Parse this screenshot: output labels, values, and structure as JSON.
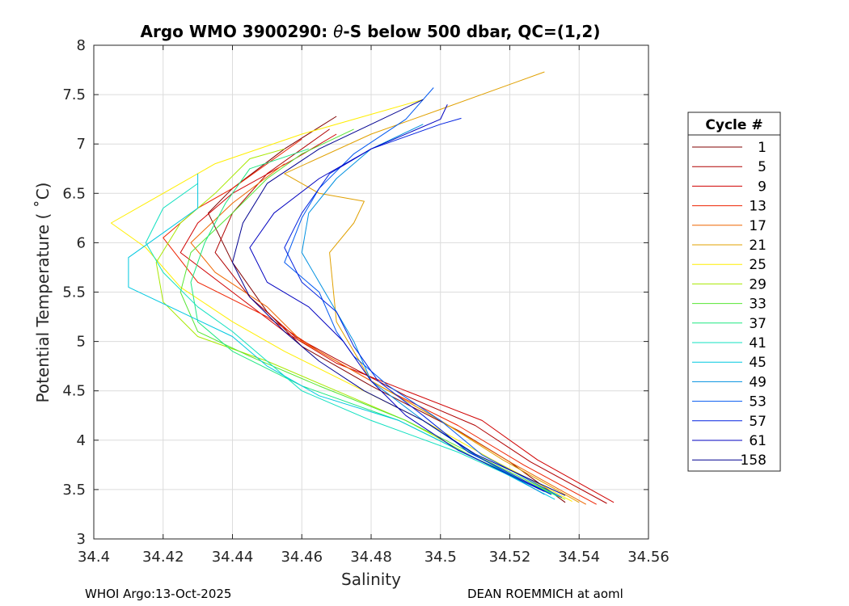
{
  "chart_data": {
    "type": "line",
    "title_prefix": "Argo WMO 3900290: ",
    "title_theta": "θ",
    "title_suffix": "-S below 500 dbar,  QC=(1,2)",
    "xlabel": "Salinity",
    "ylabel": "Potential Temperature ( ˚C)",
    "xlim": [
      34.4,
      34.56
    ],
    "ylim": [
      3,
      8
    ],
    "xticks": [
      34.4,
      34.42,
      34.44,
      34.46,
      34.48,
      34.5,
      34.52,
      34.54,
      34.56
    ],
    "xtick_labels": [
      "34.4",
      "34.42",
      "34.44",
      "34.46",
      "34.48",
      "34.5",
      "34.52",
      "34.54",
      "34.56"
    ],
    "yticks": [
      3,
      3.5,
      4,
      4.5,
      5,
      5.5,
      6,
      6.5,
      7,
      7.5,
      8
    ],
    "ytick_labels": [
      "3",
      "3.5",
      "4",
      "4.5",
      "5",
      "5.5",
      "6",
      "6.5",
      "7",
      "7.5",
      "8"
    ],
    "grid": true,
    "legend": {
      "title": "Cycle #",
      "placement": "outside-right",
      "entries": [
        {
          "label": "1",
          "color": "#800000"
        },
        {
          "label": "5",
          "color": "#b00000"
        },
        {
          "label": "9",
          "color": "#d00000"
        },
        {
          "label": "13",
          "color": "#ee2200"
        },
        {
          "label": "17",
          "color": "#ee6600"
        },
        {
          "label": "21",
          "color": "#e0a000"
        },
        {
          "label": "25",
          "color": "#ffee00"
        },
        {
          "label": "29",
          "color": "#a8e800"
        },
        {
          "label": "33",
          "color": "#55e633"
        },
        {
          "label": "37",
          "color": "#1ee880"
        },
        {
          "label": "41",
          "color": "#10e0c0"
        },
        {
          "label": "45",
          "color": "#00c8e0"
        },
        {
          "label": "49",
          "color": "#0090e0"
        },
        {
          "label": "53",
          "color": "#0058f0"
        },
        {
          "label": "57",
          "color": "#0020e0"
        },
        {
          "label": "61",
          "color": "#0000c0"
        },
        {
          "label": "158",
          "color": "#000090"
        }
      ]
    },
    "series": [
      {
        "name": "1",
        "color": "#800000",
        "points": [
          [
            34.536,
            3.37
          ],
          [
            34.52,
            3.78
          ],
          [
            34.505,
            4.1
          ],
          [
            34.48,
            4.55
          ],
          [
            34.46,
            4.95
          ],
          [
            34.45,
            5.3
          ],
          [
            34.44,
            5.8
          ],
          [
            34.433,
            6.3
          ],
          [
            34.44,
            6.55
          ],
          [
            34.455,
            6.95
          ],
          [
            34.47,
            7.28
          ]
        ]
      },
      {
        "name": "5",
        "color": "#b00000",
        "points": [
          [
            34.548,
            3.36
          ],
          [
            34.526,
            3.78
          ],
          [
            34.51,
            4.15
          ],
          [
            34.49,
            4.45
          ],
          [
            34.47,
            4.82
          ],
          [
            34.458,
            5.05
          ],
          [
            34.445,
            5.45
          ],
          [
            34.435,
            5.9
          ],
          [
            34.44,
            6.3
          ],
          [
            34.45,
            6.7
          ],
          [
            34.468,
            7.15
          ]
        ]
      },
      {
        "name": "9",
        "color": "#d00000",
        "points": [
          [
            34.55,
            3.37
          ],
          [
            34.528,
            3.8
          ],
          [
            34.512,
            4.2
          ],
          [
            34.49,
            4.5
          ],
          [
            34.47,
            4.78
          ],
          [
            34.455,
            5.1
          ],
          [
            34.44,
            5.5
          ],
          [
            34.425,
            5.9
          ],
          [
            34.43,
            6.2
          ],
          [
            34.44,
            6.5
          ],
          [
            34.458,
            6.85
          ],
          [
            34.47,
            7.1
          ]
        ]
      },
      {
        "name": "13",
        "color": "#ee2200",
        "points": [
          [
            34.545,
            3.35
          ],
          [
            34.524,
            3.75
          ],
          [
            34.505,
            4.15
          ],
          [
            34.485,
            4.5
          ],
          [
            34.465,
            4.9
          ],
          [
            34.45,
            5.25
          ],
          [
            34.43,
            5.6
          ],
          [
            34.42,
            6.05
          ],
          [
            34.43,
            6.35
          ],
          [
            34.44,
            6.55
          ],
          [
            34.46,
            7.05
          ]
        ]
      },
      {
        "name": "17",
        "color": "#ee6600",
        "points": [
          [
            34.542,
            3.35
          ],
          [
            34.52,
            3.78
          ],
          [
            34.5,
            4.2
          ],
          [
            34.48,
            4.6
          ],
          [
            34.46,
            5.0
          ],
          [
            34.45,
            5.35
          ],
          [
            34.435,
            5.7
          ],
          [
            34.428,
            6.0
          ],
          [
            34.44,
            6.4
          ],
          [
            34.455,
            6.8
          ]
        ]
      },
      {
        "name": "21",
        "color": "#e0a000",
        "points": [
          [
            34.54,
            3.37
          ],
          [
            34.518,
            3.8
          ],
          [
            34.5,
            4.2
          ],
          [
            34.48,
            4.6
          ],
          [
            34.47,
            5.2
          ],
          [
            34.468,
            5.9
          ],
          [
            34.475,
            6.2
          ],
          [
            34.478,
            6.42
          ],
          [
            34.465,
            6.5
          ],
          [
            34.455,
            6.7
          ],
          [
            34.48,
            7.1
          ],
          [
            34.5,
            7.35
          ],
          [
            34.53,
            7.73
          ]
        ]
      },
      {
        "name": "25",
        "color": "#ffee00",
        "points": [
          [
            34.538,
            3.38
          ],
          [
            34.515,
            3.8
          ],
          [
            34.495,
            4.2
          ],
          [
            34.475,
            4.55
          ],
          [
            34.455,
            4.9
          ],
          [
            34.44,
            5.2
          ],
          [
            34.425,
            5.55
          ],
          [
            34.415,
            5.95
          ],
          [
            34.405,
            6.2
          ],
          [
            34.42,
            6.5
          ],
          [
            34.435,
            6.8
          ],
          [
            34.46,
            7.1
          ],
          [
            34.48,
            7.3
          ],
          [
            34.495,
            7.45
          ]
        ]
      },
      {
        "name": "29",
        "color": "#a8e800",
        "points": [
          [
            34.536,
            3.4
          ],
          [
            34.51,
            3.82
          ],
          [
            34.49,
            4.2
          ],
          [
            34.47,
            4.5
          ],
          [
            34.45,
            4.8
          ],
          [
            34.43,
            5.05
          ],
          [
            34.42,
            5.4
          ],
          [
            34.418,
            5.8
          ],
          [
            34.425,
            6.2
          ],
          [
            34.435,
            6.5
          ],
          [
            34.445,
            6.85
          ],
          [
            34.455,
            6.95
          ]
        ]
      },
      {
        "name": "33",
        "color": "#55e633",
        "points": [
          [
            34.535,
            3.42
          ],
          [
            34.51,
            3.85
          ],
          [
            34.49,
            4.2
          ],
          [
            34.465,
            4.55
          ],
          [
            34.445,
            4.85
          ],
          [
            34.43,
            5.1
          ],
          [
            34.425,
            5.5
          ],
          [
            34.428,
            5.9
          ],
          [
            34.44,
            6.3
          ],
          [
            34.45,
            6.65
          ],
          [
            34.46,
            6.9
          ],
          [
            34.475,
            7.15
          ]
        ]
      },
      {
        "name": "37",
        "color": "#1ee880",
        "points": [
          [
            34.534,
            3.43
          ],
          [
            34.508,
            3.85
          ],
          [
            34.488,
            4.2
          ],
          [
            34.46,
            4.55
          ],
          [
            34.44,
            4.9
          ],
          [
            34.43,
            5.2
          ],
          [
            34.428,
            5.6
          ],
          [
            34.432,
            6.0
          ],
          [
            34.438,
            6.4
          ],
          [
            34.445,
            6.75
          ],
          [
            34.462,
            6.95
          ]
        ]
      },
      {
        "name": "41",
        "color": "#10e0c0",
        "points": [
          [
            34.532,
            3.45
          ],
          [
            34.505,
            3.88
          ],
          [
            34.48,
            4.2
          ],
          [
            34.46,
            4.5
          ],
          [
            34.45,
            4.8
          ],
          [
            34.44,
            5.1
          ],
          [
            34.43,
            5.35
          ],
          [
            34.42,
            5.7
          ],
          [
            34.415,
            6.0
          ],
          [
            34.42,
            6.35
          ],
          [
            34.43,
            6.6
          ]
        ]
      },
      {
        "name": "45",
        "color": "#00c8e0",
        "points": [
          [
            34.533,
            3.4
          ],
          [
            34.51,
            3.82
          ],
          [
            34.488,
            4.2
          ],
          [
            34.465,
            4.45
          ],
          [
            34.45,
            4.75
          ],
          [
            34.44,
            5.05
          ],
          [
            34.425,
            5.3
          ],
          [
            34.41,
            5.55
          ],
          [
            34.41,
            5.85
          ],
          [
            34.42,
            6.1
          ],
          [
            34.43,
            6.35
          ],
          [
            34.43,
            6.7
          ]
        ]
      },
      {
        "name": "49",
        "color": "#0090e0",
        "points": [
          [
            34.53,
            3.45
          ],
          [
            34.51,
            3.85
          ],
          [
            34.495,
            4.2
          ],
          [
            34.48,
            4.6
          ],
          [
            34.475,
            5.0
          ],
          [
            34.47,
            5.3
          ],
          [
            34.465,
            5.6
          ],
          [
            34.46,
            5.9
          ],
          [
            34.462,
            6.3
          ],
          [
            34.47,
            6.65
          ],
          [
            34.48,
            6.95
          ],
          [
            34.495,
            7.2
          ]
        ]
      },
      {
        "name": "53",
        "color": "#0058f0",
        "points": [
          [
            34.535,
            3.42
          ],
          [
            34.512,
            3.85
          ],
          [
            34.5,
            4.2
          ],
          [
            34.485,
            4.55
          ],
          [
            34.475,
            4.85
          ],
          [
            34.47,
            5.1
          ],
          [
            34.465,
            5.5
          ],
          [
            34.455,
            5.8
          ],
          [
            34.46,
            6.25
          ],
          [
            34.465,
            6.55
          ],
          [
            34.475,
            6.9
          ],
          [
            34.49,
            7.25
          ],
          [
            34.498,
            7.57
          ]
        ]
      },
      {
        "name": "57",
        "color": "#0020e0",
        "points": [
          [
            34.532,
            3.45
          ],
          [
            34.508,
            3.88
          ],
          [
            34.495,
            4.25
          ],
          [
            34.482,
            4.6
          ],
          [
            34.475,
            4.95
          ],
          [
            34.47,
            5.3
          ],
          [
            34.46,
            5.6
          ],
          [
            34.455,
            5.95
          ],
          [
            34.46,
            6.3
          ],
          [
            34.468,
            6.7
          ],
          [
            34.48,
            6.95
          ],
          [
            34.5,
            7.2
          ],
          [
            34.506,
            7.26
          ]
        ]
      },
      {
        "name": "61",
        "color": "#0000c0",
        "points": [
          [
            34.53,
            3.48
          ],
          [
            34.505,
            3.9
          ],
          [
            34.49,
            4.25
          ],
          [
            34.48,
            4.6
          ],
          [
            34.472,
            5.0
          ],
          [
            34.462,
            5.35
          ],
          [
            34.45,
            5.6
          ],
          [
            34.445,
            5.95
          ],
          [
            34.452,
            6.3
          ],
          [
            34.465,
            6.65
          ],
          [
            34.48,
            6.95
          ],
          [
            34.5,
            7.25
          ],
          [
            34.502,
            7.4
          ]
        ]
      },
      {
        "name": "158",
        "color": "#000090",
        "points": [
          [
            34.536,
            3.44
          ],
          [
            34.51,
            3.86
          ],
          [
            34.495,
            4.2
          ],
          [
            34.478,
            4.5
          ],
          [
            34.465,
            4.8
          ],
          [
            34.455,
            5.1
          ],
          [
            34.445,
            5.45
          ],
          [
            34.44,
            5.8
          ],
          [
            34.443,
            6.2
          ],
          [
            34.45,
            6.6
          ],
          [
            34.465,
            6.95
          ],
          [
            34.48,
            7.2
          ],
          [
            34.495,
            7.45
          ]
        ]
      }
    ]
  },
  "footer": {
    "left": "WHOI Argo:13-Oct-2025",
    "right": "DEAN ROEMMICH at aoml"
  }
}
